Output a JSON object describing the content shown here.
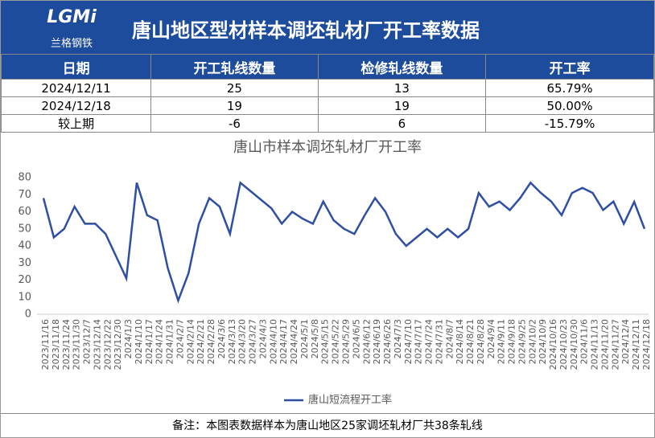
{
  "header": {
    "logo": "LGMi",
    "logo_sub": "兰格钢铁",
    "title": "唐山地区型材样本调坯轧材厂开工率数据"
  },
  "table": {
    "columns": [
      "日期",
      "开工轧线数量",
      "检修轧线数量",
      "开工率"
    ],
    "rows": [
      [
        "2024/12/11",
        "25",
        "13",
        "65.79%"
      ],
      [
        "2024/12/18",
        "19",
        "19",
        "50.00%"
      ],
      [
        "较上期",
        "-6",
        "6",
        "-15.79%"
      ]
    ]
  },
  "chart_data": {
    "type": "line",
    "title": "唐山市样本调坯轧材厂开工率",
    "categories": [
      "2023/11/16",
      "2023/11/18",
      "2023/11/24",
      "2023/11/30",
      "2023/12/7",
      "2023/12/14",
      "2023/12/22",
      "2023/12/30",
      "2024/1/3",
      "2024/1/10",
      "2024/1/17",
      "2024/1/24",
      "2024/1/31",
      "2024/2/7",
      "2024/2/14",
      "2024/2/21",
      "2024/2/28",
      "2024/3/6",
      "2024/3/13",
      "2024/3/20",
      "2024/3/27",
      "2024/4/3",
      "2024/4/10",
      "2024/4/17",
      "2024/4/24",
      "2024/5/1",
      "2024/5/8",
      "2024/5/15",
      "2024/5/22",
      "2024/5/29",
      "2024/6/5",
      "2024/6/12",
      "2024/6/19",
      "2024/6/26",
      "2024/7/3",
      "2024/7/10",
      "2024/7/17",
      "2024/7/24",
      "2024/7/31",
      "2024/8/7",
      "2024/8/14",
      "2024/8/21",
      "2024/8/28",
      "2024/9/4",
      "2024/9/11",
      "2024/9/18",
      "2024/9/25",
      "2024/10/2",
      "2024/10/9",
      "2024/10/16",
      "2024/10/23",
      "2024/10/30",
      "2024/11/6",
      "2024/11/13",
      "2024/11/20",
      "2024/11/27",
      "2024/12/4",
      "2024/12/11",
      "2024/12/18"
    ],
    "series": [
      {
        "name": "唐山短流程开工率",
        "color": "#2e4fa3",
        "values": [
          68,
          45,
          50,
          63,
          53,
          53,
          47,
          34,
          21,
          77,
          58,
          55,
          27,
          8,
          24,
          53,
          68,
          63,
          47,
          77,
          72,
          67,
          62,
          53,
          60,
          56,
          53,
          66,
          55,
          50,
          47,
          58,
          68,
          60,
          47,
          40,
          45,
          50,
          45,
          50,
          45,
          50,
          71,
          63,
          66,
          61,
          68,
          77,
          71,
          66,
          58,
          71,
          74,
          71,
          61,
          66,
          53,
          65.79,
          50
        ]
      }
    ],
    "ylim": [
      0,
      80
    ],
    "yticks": [
      0,
      10,
      20,
      30,
      40,
      50,
      60,
      70,
      80
    ],
    "grid": false,
    "legend": "bottom"
  },
  "note": "备注：本图表数据样本为唐山地区25家调坯轧材厂共38条轧线"
}
